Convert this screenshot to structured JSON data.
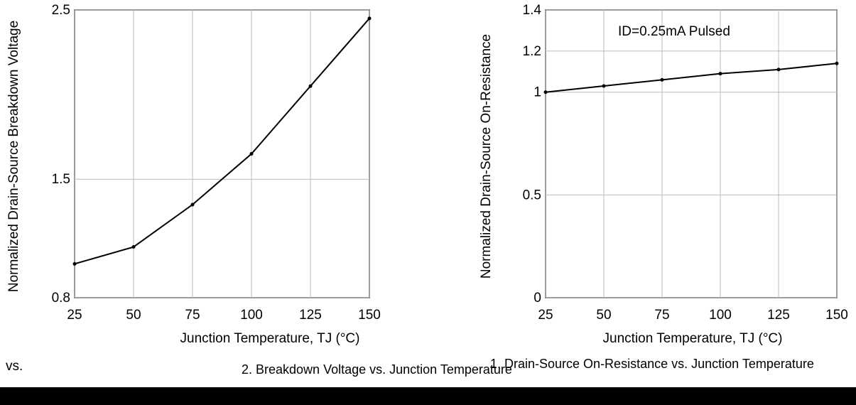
{
  "chart_data": [
    {
      "type": "line",
      "caption": "2. Breakdown Voltage vs. Junction Temperature",
      "xlabel": "Junction Temperature, TJ (°C)",
      "ylabel": "Normalized Drain-Source Breakdown Voltage",
      "x_ticks": [
        25,
        50,
        75,
        100,
        125,
        150
      ],
      "y_ticks": [
        0.8,
        1.5,
        2.5
      ],
      "xlim": [
        25,
        150
      ],
      "ylim": [
        0.8,
        2.5
      ],
      "series": [
        {
          "x": [
            25,
            50,
            75,
            100,
            125,
            150
          ],
          "values": [
            1.0,
            1.1,
            1.35,
            1.65,
            2.05,
            2.45
          ]
        }
      ]
    },
    {
      "type": "line",
      "caption": "1. Drain-Source On-Resistance vs. Junction Temperature",
      "xlabel": "Junction Temperature, TJ (°C)",
      "ylabel": "Normalized Drain-Source On-Resistance",
      "annotation": "ID=0.25mA Pulsed",
      "x_ticks": [
        25,
        50,
        75,
        100,
        125,
        150
      ],
      "y_ticks": [
        0,
        0.5,
        1,
        1.2,
        1.4
      ],
      "xlim": [
        25,
        150
      ],
      "ylim": [
        0,
        1.4
      ],
      "series": [
        {
          "x": [
            25,
            50,
            75,
            100,
            125,
            150
          ],
          "values": [
            1.0,
            1.03,
            1.06,
            1.09,
            1.11,
            1.14
          ]
        }
      ]
    }
  ],
  "left_caption_fragment": "vs."
}
